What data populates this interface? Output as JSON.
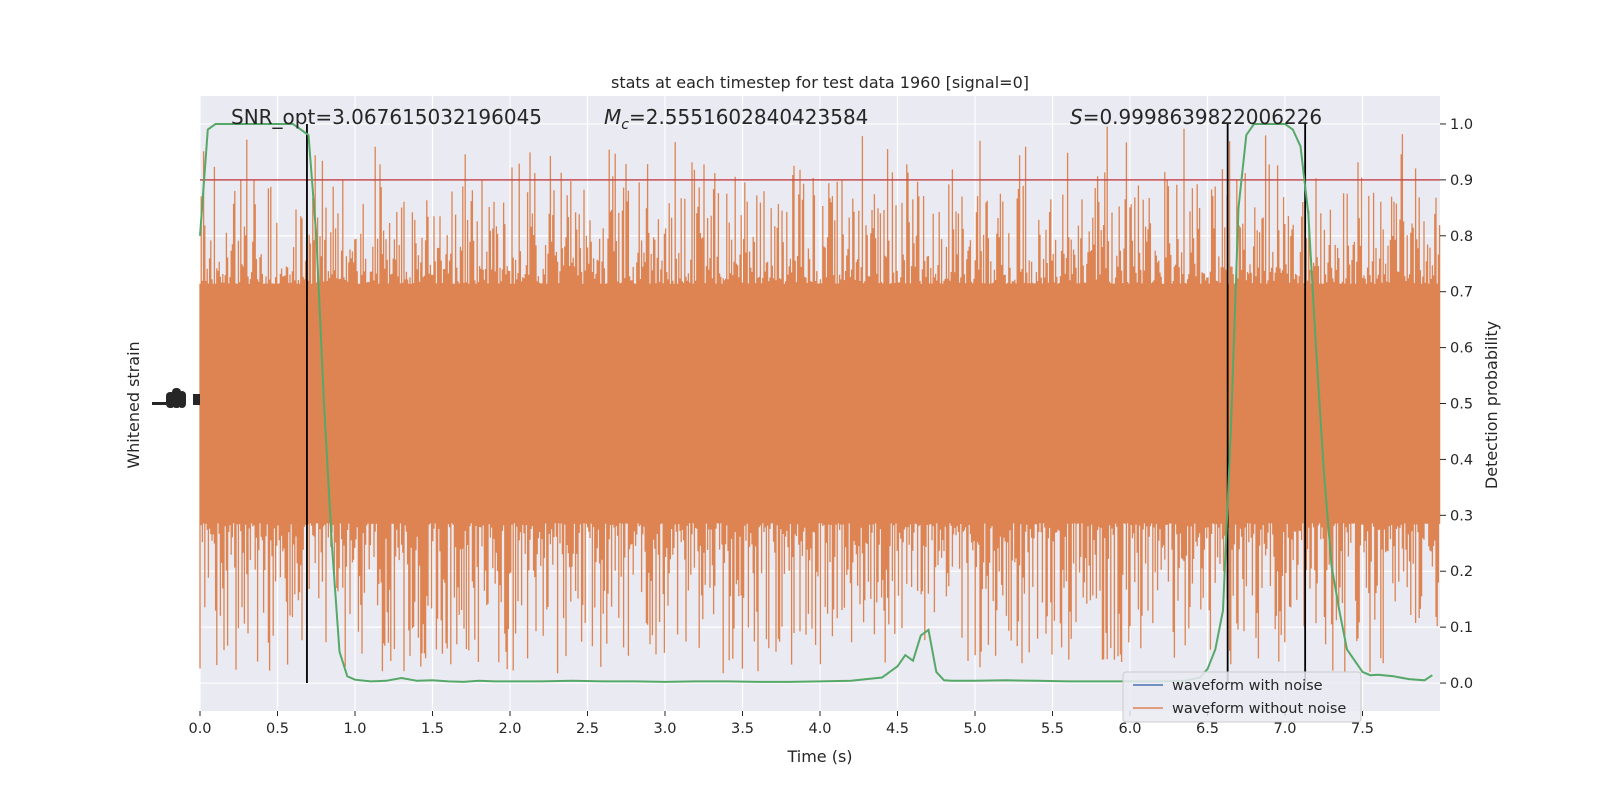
{
  "chart_data": {
    "type": "line",
    "title": "stats at each timestep for test data 1960 [signal=0]",
    "xlabel": "Time (s)",
    "ylabel_left": "Whitened strain",
    "ylabel_right": "Detection probability",
    "xlim": [
      0,
      8
    ],
    "ylim_right": [
      -0.05,
      1.05
    ],
    "x_ticks": [
      0.0,
      0.5,
      1.0,
      1.5,
      2.0,
      2.5,
      3.0,
      3.5,
      4.0,
      4.5,
      5.0,
      5.5,
      6.0,
      6.5,
      7.0,
      7.5
    ],
    "x_tick_labels": [
      "0.0",
      "0.5",
      "1.0",
      "1.5",
      "2.0",
      "2.5",
      "3.0",
      "3.5",
      "4.0",
      "4.5",
      "5.0",
      "5.5",
      "6.0",
      "6.5",
      "7.0",
      "7.5"
    ],
    "y_ticks_right": [
      0.0,
      0.1,
      0.2,
      0.3,
      0.4,
      0.5,
      0.6,
      0.7,
      0.8,
      0.9,
      1.0
    ],
    "y_tick_labels_right": [
      "0.0",
      "0.1",
      "0.2",
      "0.3",
      "0.4",
      "0.5",
      "0.6",
      "0.7",
      "0.8",
      "0.9",
      "1.0"
    ],
    "grid": true,
    "legend_position": "lower-right",
    "annotations": {
      "snr": "SNR_opt=3.067615032196045",
      "mc_symbol": "M",
      "mc_subscript": "c",
      "mc_value": "=2.5551602840423584",
      "s_symbol": "S",
      "s_value": "=0.9998639822006226"
    },
    "threshold": 0.9,
    "vertical_lines_x": [
      0.69,
      6.63,
      7.13
    ],
    "series": [
      {
        "name": "waveform with noise",
        "color": "#4c72b0"
      },
      {
        "name": "waveform without noise",
        "color": "#dd8452"
      },
      {
        "color": "#55a868",
        "x": [
          0.0,
          0.05,
          0.1,
          0.2,
          0.3,
          0.4,
          0.5,
          0.6,
          0.65,
          0.7,
          0.75,
          0.8,
          0.85,
          0.9,
          0.95,
          1.0,
          1.1,
          1.2,
          1.3,
          1.4,
          1.5,
          1.6,
          1.7,
          1.8,
          1.9,
          2.0,
          2.2,
          2.4,
          2.6,
          2.8,
          3.0,
          3.2,
          3.4,
          3.6,
          3.8,
          4.0,
          4.2,
          4.4,
          4.5,
          4.55,
          4.6,
          4.65,
          4.7,
          4.75,
          4.8,
          4.85,
          4.9,
          5.0,
          5.2,
          5.4,
          5.6,
          5.8,
          6.0,
          6.2,
          6.35,
          6.45,
          6.5,
          6.55,
          6.6,
          6.65,
          6.7,
          6.75,
          6.8,
          6.9,
          7.0,
          7.05,
          7.1,
          7.15,
          7.2,
          7.25,
          7.3,
          7.35,
          7.4,
          7.5,
          7.55,
          7.6,
          7.7,
          7.8,
          7.9,
          7.95
        ],
        "values": [
          0.8,
          0.99,
          1.0,
          1.0,
          1.0,
          1.0,
          1.0,
          1.0,
          0.99,
          0.98,
          0.8,
          0.5,
          0.25,
          0.056,
          0.012,
          0.006,
          0.003,
          0.004,
          0.009,
          0.004,
          0.005,
          0.003,
          0.002,
          0.004,
          0.003,
          0.003,
          0.003,
          0.004,
          0.003,
          0.003,
          0.002,
          0.003,
          0.003,
          0.002,
          0.002,
          0.003,
          0.004,
          0.01,
          0.03,
          0.05,
          0.04,
          0.085,
          0.095,
          0.02,
          0.005,
          0.004,
          0.004,
          0.004,
          0.005,
          0.004,
          0.003,
          0.003,
          0.003,
          0.003,
          0.004,
          0.01,
          0.025,
          0.06,
          0.13,
          0.45,
          0.85,
          0.98,
          1.0,
          1.0,
          1.0,
          0.99,
          0.96,
          0.84,
          0.6,
          0.38,
          0.21,
          0.13,
          0.06,
          0.02,
          0.014,
          0.015,
          0.012,
          0.007,
          0.005,
          0.014
        ]
      }
    ]
  }
}
